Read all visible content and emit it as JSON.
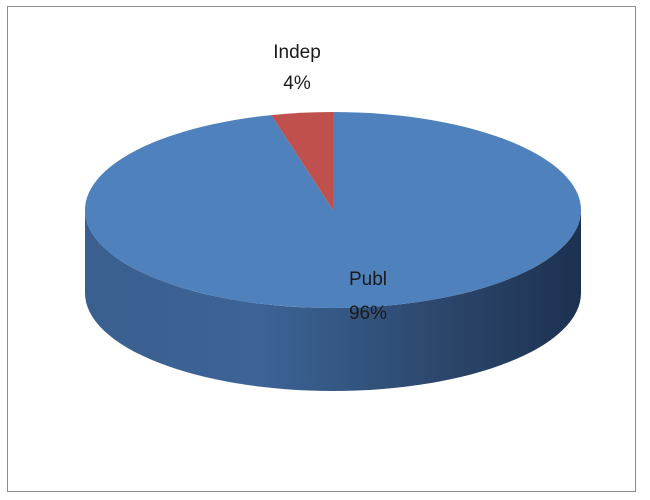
{
  "chart_data": {
    "type": "pie",
    "title": "",
    "slices": [
      {
        "label": "Indep",
        "percent_label": "4%",
        "value": 4,
        "color": "#c0504d"
      },
      {
        "label": "Publ",
        "percent_label": "96%",
        "value": 96,
        "color": "#4f81bd"
      }
    ],
    "style": "3d",
    "legend": "none"
  }
}
